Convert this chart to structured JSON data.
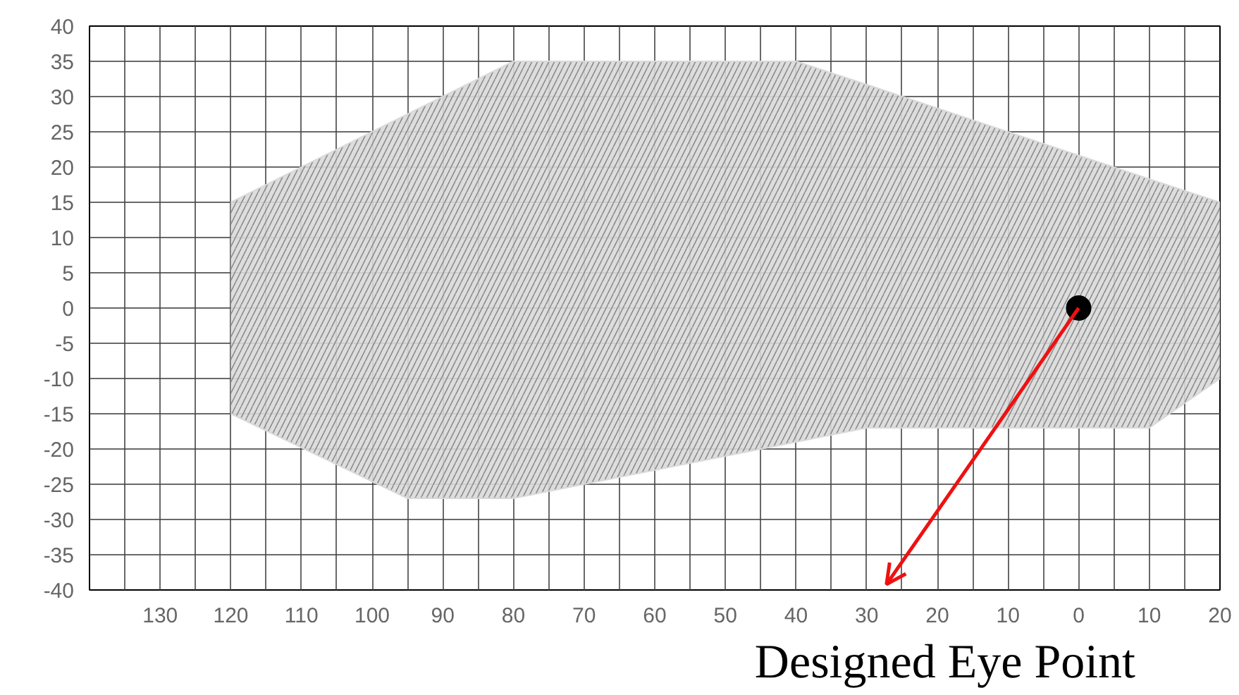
{
  "chart_data": {
    "type": "area",
    "x": [
      120,
      95,
      80,
      40,
      30,
      -10,
      -20
    ],
    "series": [
      {
        "color": "#d9d9d9",
        "values": [
          15,
          27.5,
          35,
          35,
          31.7,
          18.3,
          15
        ]
      },
      {
        "color": "#d9d9d9",
        "values": [
          -15,
          -27,
          -27,
          -19,
          -17,
          -17,
          -10
        ]
      },
      {
        "type": "scatter",
        "color": "#000000",
        "x": [
          0
        ],
        "values": [
          0
        ]
      }
    ],
    "annotations": [
      {
        "text": "Designed Eye Point",
        "x": 0,
        "y": 0
      }
    ],
    "xlim": [
      140,
      -20
    ],
    "ylim": [
      -40,
      40
    ],
    "xticks": [
      {
        "value": 135,
        "label": null
      },
      130,
      {
        "value": 125,
        "label": null
      },
      120,
      {
        "value": 115,
        "label": null
      },
      110,
      {
        "value": 105,
        "label": null
      },
      100,
      {
        "value": 95,
        "label": null
      },
      90,
      {
        "value": 85,
        "label": null
      },
      80,
      {
        "value": 75,
        "label": null
      },
      70,
      {
        "value": 65,
        "label": null
      },
      60,
      {
        "value": 55,
        "label": null
      },
      50,
      {
        "value": 45,
        "label": null
      },
      40,
      {
        "value": 35,
        "label": null
      },
      30,
      {
        "value": 25,
        "label": null
      },
      20,
      {
        "value": 15,
        "label": null
      },
      10,
      {
        "value": 5,
        "label": null
      },
      0,
      {
        "value": -5,
        "label": null
      },
      {
        "value": -10,
        "label": "10"
      },
      {
        "value": -15,
        "label": null
      },
      {
        "value": -20,
        "label": "20"
      }
    ],
    "yticks": [
      -40,
      -35,
      -30,
      -25,
      -20,
      -15,
      -10,
      -5,
      0,
      5,
      10,
      15,
      20,
      25,
      30,
      35,
      40
    ],
    "grid": true
  }
}
